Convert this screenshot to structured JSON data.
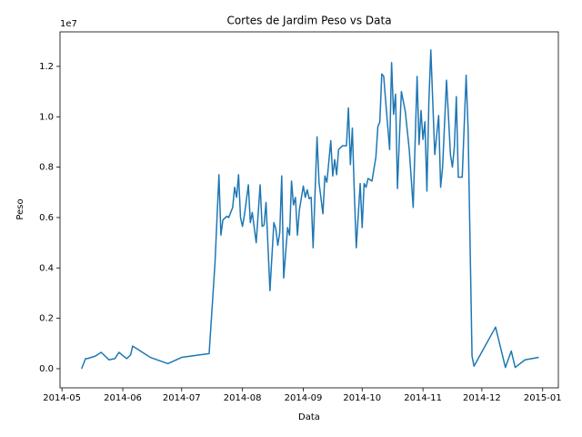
{
  "chart_data": {
    "type": "line",
    "title": "Cortes de Jardim Peso vs Data",
    "xlabel": "Data",
    "ylabel": "Peso",
    "y_offset_label": "1e7",
    "x": [
      "2014-05-11",
      "2014-05-13",
      "2014-05-14",
      "2014-05-18",
      "2014-05-21",
      "2014-05-25",
      "2014-05-28",
      "2014-05-30",
      "2014-06-03",
      "2014-06-05",
      "2014-06-06",
      "2014-06-15",
      "2014-06-24",
      "2014-07-01",
      "2014-07-15",
      "2014-07-18",
      "2014-07-20",
      "2014-07-21",
      "2014-07-22",
      "2014-07-24",
      "2014-07-25",
      "2014-07-27",
      "2014-07-28",
      "2014-07-29",
      "2014-07-30",
      "2014-07-31",
      "2014-08-01",
      "2014-08-02",
      "2014-08-04",
      "2014-08-05",
      "2014-08-06",
      "2014-08-08",
      "2014-08-10",
      "2014-08-11",
      "2014-08-12",
      "2014-08-13",
      "2014-08-15",
      "2014-08-17",
      "2014-08-18",
      "2014-08-19",
      "2014-08-20",
      "2014-08-21",
      "2014-08-22",
      "2014-08-24",
      "2014-08-25",
      "2014-08-26",
      "2014-08-27",
      "2014-08-28",
      "2014-08-29",
      "2014-08-30",
      "2014-09-01",
      "2014-09-02",
      "2014-09-03",
      "2014-09-04",
      "2014-09-05",
      "2014-09-06",
      "2014-09-08",
      "2014-09-09",
      "2014-09-11",
      "2014-09-12",
      "2014-09-13",
      "2014-09-14",
      "2014-09-15",
      "2014-09-16",
      "2014-09-17",
      "2014-09-18",
      "2014-09-19",
      "2014-09-21",
      "2014-09-23",
      "2014-09-24",
      "2014-09-25",
      "2014-09-26",
      "2014-09-27",
      "2014-09-28",
      "2014-09-30",
      "2014-10-01",
      "2014-10-02",
      "2014-10-03",
      "2014-10-04",
      "2014-10-06",
      "2014-10-08",
      "2014-10-09",
      "2014-10-10",
      "2014-10-11",
      "2014-10-12",
      "2014-10-13",
      "2014-10-15",
      "2014-10-16",
      "2014-10-17",
      "2014-10-18",
      "2014-10-19",
      "2014-10-20",
      "2014-10-21",
      "2014-10-23",
      "2014-10-25",
      "2014-10-27",
      "2014-10-29",
      "2014-10-30",
      "2014-10-31",
      "2014-11-01",
      "2014-11-02",
      "2014-11-03",
      "2014-11-04",
      "2014-11-05",
      "2014-11-07",
      "2014-11-09",
      "2014-11-10",
      "2014-11-11",
      "2014-11-13",
      "2014-11-14",
      "2014-11-15",
      "2014-11-16",
      "2014-11-17",
      "2014-11-18",
      "2014-11-19",
      "2014-11-21",
      "2014-11-23",
      "2014-11-24",
      "2014-11-26",
      "2014-11-27",
      "2014-12-08",
      "2014-12-13",
      "2014-12-16",
      "2014-12-18",
      "2014-12-23",
      "2014-12-30"
    ],
    "series": [
      {
        "color": "#1f77b4",
        "values": [
          0.0,
          0.04,
          0.04,
          0.05,
          0.065,
          0.035,
          0.04,
          0.065,
          0.04,
          0.055,
          0.09,
          0.045,
          0.02,
          0.045,
          0.06,
          0.42,
          0.77,
          0.53,
          0.59,
          0.605,
          0.6,
          0.64,
          0.72,
          0.68,
          0.77,
          0.6,
          0.565,
          0.61,
          0.73,
          0.58,
          0.62,
          0.5,
          0.73,
          0.565,
          0.57,
          0.66,
          0.31,
          0.58,
          0.555,
          0.49,
          0.54,
          0.765,
          0.36,
          0.56,
          0.53,
          0.745,
          0.65,
          0.68,
          0.53,
          0.63,
          0.725,
          0.68,
          0.71,
          0.675,
          0.68,
          0.48,
          0.92,
          0.74,
          0.615,
          0.765,
          0.74,
          0.82,
          0.905,
          0.765,
          0.83,
          0.77,
          0.87,
          0.885,
          0.885,
          1.035,
          0.81,
          0.955,
          0.7,
          0.48,
          0.735,
          0.56,
          0.735,
          0.72,
          0.755,
          0.745,
          0.84,
          0.96,
          0.98,
          1.17,
          1.16,
          1.06,
          0.87,
          1.215,
          1.01,
          1.09,
          0.715,
          0.92,
          1.1,
          1.02,
          0.87,
          0.64,
          1.16,
          0.89,
          1.025,
          0.91,
          0.98,
          0.705,
          1.06,
          1.265,
          0.85,
          1.005,
          0.72,
          0.8,
          1.145,
          1.0,
          0.85,
          0.8,
          0.88,
          1.08,
          0.76,
          0.76,
          1.165,
          0.95,
          0.05,
          0.01,
          0.165,
          0.005,
          0.07,
          0.005,
          0.035,
          0.045
        ]
      }
    ],
    "xlim": [
      "2014-04-30",
      "2015-01-09"
    ],
    "xticks": [
      {
        "value": "2014-05-01",
        "label": "2014-05"
      },
      {
        "value": "2014-06-01",
        "label": "2014-06"
      },
      {
        "value": "2014-07-01",
        "label": "2014-07"
      },
      {
        "value": "2014-08-01",
        "label": "2014-08"
      },
      {
        "value": "2014-09-01",
        "label": "2014-09"
      },
      {
        "value": "2014-10-01",
        "label": "2014-10"
      },
      {
        "value": "2014-11-01",
        "label": "2014-11"
      },
      {
        "value": "2014-12-01",
        "label": "2014-12"
      },
      {
        "value": "2015-01-01",
        "label": "2015-01"
      }
    ],
    "ylim": [
      -0.076,
      1.337
    ],
    "yticks": [
      {
        "value": 0,
        "label": "0.0"
      },
      0.2,
      0.4,
      0.6,
      0.8,
      {
        "value": 1,
        "label": "1.0"
      },
      1.2
    ]
  }
}
